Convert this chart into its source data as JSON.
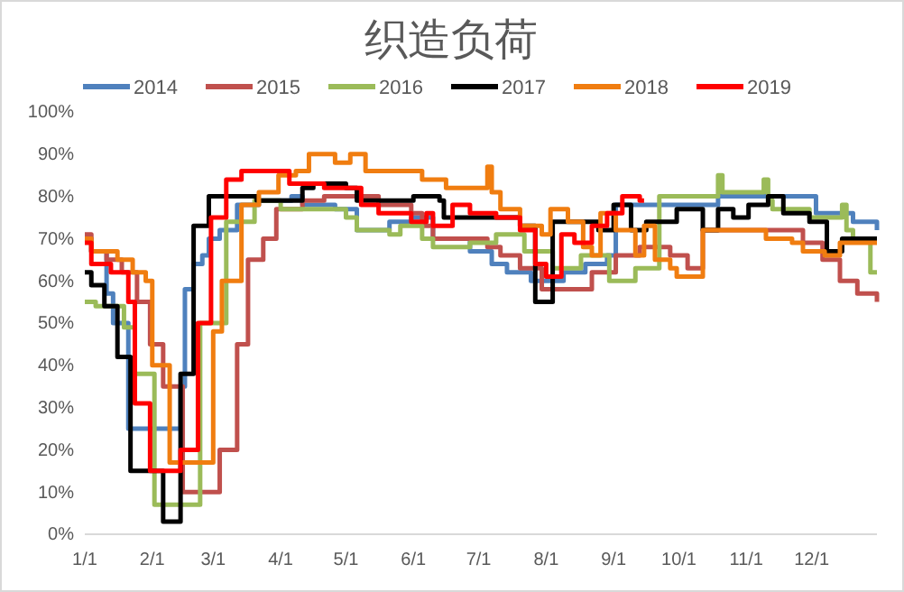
{
  "chart_data": {
    "type": "step",
    "title": "织造负荷",
    "legend": "top",
    "grid": false,
    "line_style": "solid",
    "marker": "none",
    "xlim": [
      "--01-01",
      "--12-31"
    ],
    "xticks": [
      {
        "value": "--01-01",
        "label": "1/1"
      },
      {
        "value": "--02-01",
        "label": "2/1"
      },
      {
        "value": "--03-01",
        "label": "3/1"
      },
      {
        "value": "--04-01",
        "label": "4/1"
      },
      {
        "value": "--05-01",
        "label": "5/1"
      },
      {
        "value": "--06-01",
        "label": "6/1"
      },
      {
        "value": "--07-01",
        "label": "7/1"
      },
      {
        "value": "--08-01",
        "label": "8/1"
      },
      {
        "value": "--09-01",
        "label": "9/1"
      },
      {
        "value": "--10-01",
        "label": "10/1"
      },
      {
        "value": "--11-01",
        "label": "11/1"
      },
      {
        "value": "--12-01",
        "label": "12/1"
      }
    ],
    "ylim": [
      0,
      100
    ],
    "yticks": [
      {
        "value": 0,
        "label": "0%"
      },
      {
        "value": 10,
        "label": "10%"
      },
      {
        "value": 20,
        "label": "20%"
      },
      {
        "value": 30,
        "label": "30%"
      },
      {
        "value": 40,
        "label": "40%"
      },
      {
        "value": 50,
        "label": "50%"
      },
      {
        "value": 60,
        "label": "60%"
      },
      {
        "value": 70,
        "label": "70%"
      },
      {
        "value": 80,
        "label": "80%"
      },
      {
        "value": 90,
        "label": "90%"
      },
      {
        "value": 100,
        "label": "100%"
      }
    ],
    "series": [
      {
        "name": "2014",
        "color": "#4f81bd",
        "x": [
          "--01-01",
          "--01-04",
          "--01-11",
          "--01-14",
          "--01-21",
          "--02-14",
          "--02-16",
          "--02-20",
          "--02-24",
          "--02-27",
          "--03-04",
          "--03-12",
          "--03-22",
          "--04-06",
          "--04-11",
          "--04-26",
          "--05-06",
          "--05-21",
          "--05-31",
          "--06-10",
          "--06-27",
          "--07-07",
          "--07-14",
          "--07-25",
          "--08-09",
          "--08-19",
          "--08-29",
          "--09-02",
          "--10-19",
          "--12-03",
          "--12-20",
          "--12-31"
        ],
        "values": [
          70,
          67,
          57,
          50,
          25,
          35,
          58,
          64,
          66,
          70,
          72,
          78,
          79,
          80,
          78,
          77,
          72,
          74,
          75,
          70,
          67,
          64,
          62,
          60,
          62,
          64,
          66,
          78,
          80,
          76,
          74,
          72
        ]
      },
      {
        "name": "2015",
        "color": "#c0504d",
        "x": [
          "--01-01",
          "--01-04",
          "--01-11",
          "--01-18",
          "--01-25",
          "--01-31",
          "--02-06",
          "--02-15",
          "--03-04",
          "--03-12",
          "--03-17",
          "--03-24",
          "--03-30",
          "--04-11",
          "--04-21",
          "--05-16",
          "--05-31",
          "--06-05",
          "--06-10",
          "--07-05",
          "--07-11",
          "--07-20",
          "--07-30",
          "--08-22",
          "--09-02",
          "--09-13",
          "--09-27",
          "--10-05",
          "--10-12",
          "--11-27",
          "--12-02",
          "--12-06",
          "--12-14",
          "--12-22",
          "--12-31"
        ],
        "values": [
          71,
          67,
          65,
          62,
          55,
          45,
          35,
          10,
          20,
          45,
          65,
          70,
          77,
          79,
          80,
          78,
          76,
          73,
          70,
          68,
          66,
          63,
          58,
          62,
          66,
          68,
          66,
          63,
          72,
          69,
          69,
          65,
          60,
          57,
          55
        ]
      },
      {
        "name": "2016",
        "color": "#9bbb59",
        "x": [
          "--01-01",
          "--01-06",
          "--01-19",
          "--01-24",
          "--02-02",
          "--02-23",
          "--03-07",
          "--03-20",
          "--04-01",
          "--05-01",
          "--05-06",
          "--05-21",
          "--05-26",
          "--06-05",
          "--06-10",
          "--06-27",
          "--07-09",
          "--07-22",
          "--08-04",
          "--08-17",
          "--08-30",
          "--09-11",
          "--09-22",
          "--10-19",
          "--10-21",
          "--11-09",
          "--11-11",
          "--11-13",
          "--11-30",
          "--12-15",
          "--12-17",
          "--12-20",
          "--12-28",
          "--12-31"
        ],
        "values": [
          55,
          54,
          49,
          38,
          7,
          50,
          74,
          79,
          77,
          75,
          72,
          71,
          73,
          70,
          68,
          69,
          71,
          67,
          63,
          66,
          60,
          63,
          80,
          85,
          81,
          84,
          79,
          77,
          75,
          78,
          72,
          70,
          62,
          62
        ]
      },
      {
        "name": "2017",
        "color": "#000000",
        "x": [
          "--01-01",
          "--01-04",
          "--01-10",
          "--01-16",
          "--01-22",
          "--02-06",
          "--02-14",
          "--02-20",
          "--02-27",
          "--03-21",
          "--04-11",
          "--04-16",
          "--05-01",
          "--05-06",
          "--06-01",
          "--06-13",
          "--06-15",
          "--07-20",
          "--07-27",
          "--08-04",
          "--08-25",
          "--09-01",
          "--09-09",
          "--09-16",
          "--09-30",
          "--10-12",
          "--10-19",
          "--10-26",
          "--11-02",
          "--11-11",
          "--11-18",
          "--11-30",
          "--12-08",
          "--12-15",
          "--12-31"
        ],
        "values": [
          62,
          59,
          54,
          42,
          15,
          3,
          38,
          73,
          80,
          79,
          82,
          83,
          82,
          79,
          80,
          79,
          75,
          73,
          55,
          74,
          72,
          78,
          72,
          74,
          77,
          72,
          77,
          75,
          78,
          80,
          76,
          74,
          67,
          70,
          70
        ]
      },
      {
        "name": "2018",
        "color": "#f07d10",
        "x": [
          "--01-01",
          "--01-04",
          "--01-16",
          "--01-23",
          "--01-29",
          "--02-01",
          "--02-09",
          "--02-27",
          "--03-01",
          "--03-05",
          "--03-14",
          "--03-22",
          "--03-31",
          "--04-08",
          "--04-14",
          "--04-26",
          "--05-03",
          "--05-10",
          "--05-31",
          "--06-05",
          "--06-16",
          "--07-05",
          "--07-07",
          "--07-11",
          "--07-20",
          "--07-30",
          "--08-03",
          "--08-11",
          "--08-18",
          "--08-22",
          "--08-26",
          "--09-02",
          "--09-11",
          "--09-15",
          "--09-20",
          "--09-27",
          "--09-30",
          "--10-12",
          "--11-08",
          "--11-10",
          "--11-22",
          "--11-27",
          "--12-07",
          "--12-14",
          "--12-31"
        ],
        "values": [
          70,
          67,
          65,
          62,
          60,
          40,
          17,
          17,
          48,
          60,
          78,
          81,
          85,
          86,
          90,
          88,
          90,
          86,
          86,
          84,
          82,
          87,
          81,
          77,
          73,
          71,
          77,
          74,
          68,
          66,
          76,
          72,
          66,
          73,
          65,
          63,
          61,
          72,
          72,
          70,
          69,
          67,
          66,
          69,
          69
        ]
      },
      {
        "name": "2019",
        "color": "#ff0000",
        "x": [
          "--01-01",
          "--01-04",
          "--01-13",
          "--01-21",
          "--01-24",
          "--01-31",
          "--02-14",
          "--02-20",
          "--02-22",
          "--02-28",
          "--03-07",
          "--03-14",
          "--04-05",
          "--04-21",
          "--05-08",
          "--05-16",
          "--05-31",
          "--06-07",
          "--06-10",
          "--06-19",
          "--06-27",
          "--07-09",
          "--07-20",
          "--07-27",
          "--08-01",
          "--08-08",
          "--08-14",
          "--08-22",
          "--08-29",
          "--09-05",
          "--09-13",
          "--09-15"
        ],
        "values": [
          69,
          64,
          62,
          55,
          31,
          15,
          20,
          20,
          50,
          75,
          84,
          86,
          83,
          82,
          78,
          76,
          74,
          76,
          73,
          78,
          76,
          75,
          72,
          64,
          61,
          71,
          69,
          73,
          76,
          80,
          79,
          79
        ]
      }
    ]
  }
}
